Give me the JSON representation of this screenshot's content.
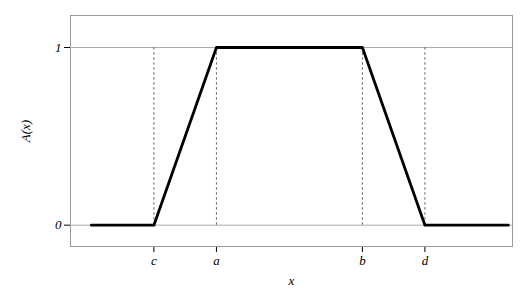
{
  "chart_data": {
    "type": "line",
    "x": [
      0.0,
      1.5,
      3.0,
      6.5,
      8.0,
      10.0
    ],
    "values": [
      0.0,
      0.0,
      1.0,
      1.0,
      0.0,
      0.0
    ],
    "color": "#000000",
    "xlabel": "x",
    "ylabel": "A(x)",
    "xlim": [
      -0.5,
      10.1
    ],
    "ylim": [
      -0.12,
      1.18
    ],
    "xticks": [
      {
        "value": 1.5,
        "label": "c"
      },
      {
        "value": 3.0,
        "label": "a"
      },
      {
        "value": 6.5,
        "label": "b"
      },
      {
        "value": 8.0,
        "label": "d"
      }
    ],
    "yticks": [
      0,
      1
    ],
    "grid": true
  }
}
